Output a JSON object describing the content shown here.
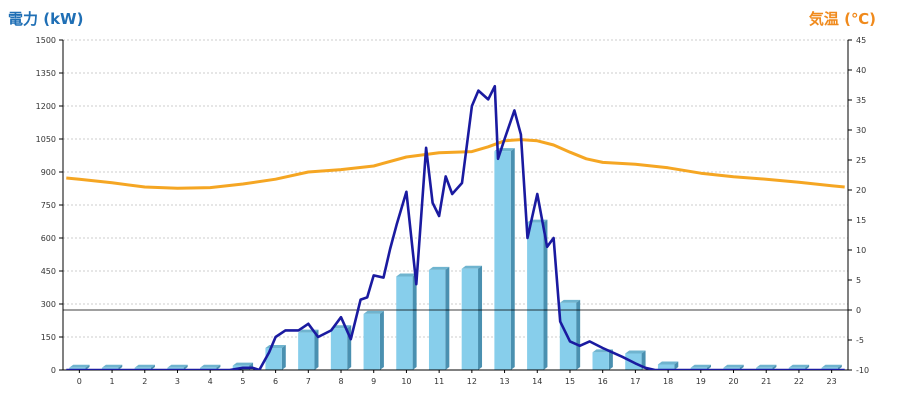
{
  "chart_data": {
    "type": "bar",
    "ylabel_left": "電力 (kW)",
    "ylabel_right": "気温 (℃)",
    "categories": [
      "0",
      "1",
      "2",
      "3",
      "4",
      "5",
      "6",
      "7",
      "8",
      "9",
      "10",
      "11",
      "12",
      "13",
      "14",
      "15",
      "16",
      "17",
      "18",
      "19",
      "20",
      "21",
      "22",
      "23"
    ],
    "ylim_left": [
      0,
      1500
    ],
    "ylim_right": [
      -10,
      45
    ],
    "yticks_left": [
      "0",
      "150",
      "300",
      "450",
      "600",
      "750",
      "900",
      "1050",
      "1200",
      "1350",
      "1500"
    ],
    "yticks_right": [
      "-10",
      "-5",
      "0",
      "5",
      "10",
      "15",
      "20",
      "25",
      "30",
      "35",
      "40",
      "45"
    ],
    "bars": [
      10,
      10,
      10,
      10,
      10,
      20,
      100,
      170,
      190,
      255,
      425,
      455,
      460,
      995,
      670,
      305,
      80,
      75,
      25,
      10,
      10,
      10,
      10,
      10
    ],
    "power_line": {
      "x": [
        -0.4,
        0,
        1,
        2,
        3,
        4,
        4.6,
        5,
        5.3,
        5.5,
        5.8,
        6,
        6.3,
        6.7,
        7,
        7.3,
        7.7,
        8,
        8.3,
        8.6,
        8.8,
        9,
        9.3,
        9.5,
        9.7,
        10,
        10.3,
        10.6,
        10.8,
        11,
        11.2,
        11.4,
        11.7,
        12,
        12.2,
        12.5,
        12.7,
        12.8,
        13,
        13.3,
        13.5,
        13.7,
        14,
        14.3,
        14.5,
        14.7,
        15,
        15.3,
        15.6,
        16,
        16.3,
        16.6,
        17,
        17.3,
        17.6,
        18,
        18.3,
        18.6,
        19,
        20,
        21,
        22,
        23,
        23.4
      ],
      "y": [
        0,
        0,
        0,
        0,
        0,
        0,
        0,
        10,
        10,
        0,
        80,
        150,
        180,
        180,
        210,
        150,
        180,
        240,
        140,
        320,
        330,
        430,
        420,
        550,
        660,
        810,
        390,
        1010,
        760,
        700,
        880,
        800,
        850,
        1200,
        1270,
        1230,
        1290,
        960,
        1050,
        1180,
        1070,
        600,
        800,
        560,
        600,
        220,
        130,
        110,
        130,
        100,
        80,
        60,
        30,
        10,
        0,
        0,
        0,
        0,
        0,
        0,
        0,
        0,
        0,
        0
      ]
    },
    "temp_line": {
      "x": [
        -0.4,
        0,
        1,
        2,
        3,
        4,
        5,
        6,
        7,
        8,
        9,
        10,
        11,
        12,
        12.5,
        13,
        13.5,
        14,
        14.5,
        15,
        15.5,
        16,
        17,
        18,
        19,
        20,
        21,
        22,
        23,
        23.4
      ],
      "y": [
        22,
        21.8,
        21.2,
        20.5,
        20.3,
        20.4,
        21,
        21.8,
        23,
        23.4,
        24,
        25.5,
        26.2,
        26.4,
        27.2,
        28.2,
        28.4,
        28.2,
        27.5,
        26.3,
        25.2,
        24.6,
        24.3,
        23.7,
        22.8,
        22.2,
        21.8,
        21.3,
        20.7,
        20.5
      ]
    },
    "grid": true,
    "legend": "none",
    "colors": {
      "bar": "#87ceeb",
      "power_line": "#1a1aa0",
      "temp_line": "#f5a623",
      "zero_line": "#000000",
      "left_axis_title": "#1f6fb5",
      "right_axis_title": "#f08a1c"
    }
  }
}
